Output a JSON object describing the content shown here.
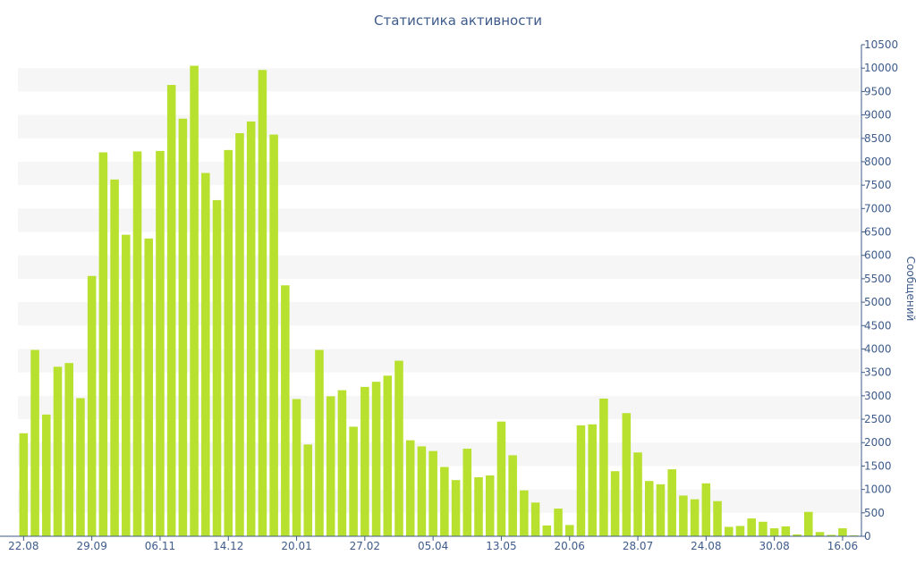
{
  "chart_data": {
    "type": "bar",
    "title": "Статистика активности",
    "xlabel": "",
    "ylabel": "Сообщений",
    "ylim": [
      0,
      10500
    ],
    "y_ticks": [
      0,
      500,
      1000,
      1500,
      2000,
      2500,
      3000,
      3500,
      4000,
      4500,
      5000,
      5500,
      6000,
      6500,
      7000,
      7500,
      8000,
      8500,
      9000,
      9500,
      10000,
      10500
    ],
    "y_axis_position": "right",
    "x_tick_labels": [
      "22.08",
      "29.09",
      "06.11",
      "14.12",
      "20.01",
      "27.02",
      "05.04",
      "13.05",
      "20.06",
      "28.07",
      "24.08",
      "30.08",
      "16.06"
    ],
    "x_tick_every": 6,
    "grid": "alternating horizontal bands",
    "colors": {
      "bar": "#b8e02e",
      "band": "#f6f6f6",
      "text": "#3e5b8a",
      "axis": "#3e5b8a"
    },
    "values": [
      2200,
      3980,
      2600,
      3620,
      3700,
      2950,
      5560,
      8200,
      7620,
      6440,
      8220,
      6360,
      8230,
      9640,
      8920,
      10050,
      7760,
      7180,
      8250,
      8610,
      8860,
      9960,
      8580,
      5360,
      2930,
      1960,
      3980,
      2990,
      3120,
      2340,
      3190,
      3300,
      3430,
      3750,
      2050,
      1920,
      1820,
      1480,
      1200,
      1870,
      1260,
      1300,
      2450,
      1730,
      980,
      720,
      230,
      590,
      240,
      2370,
      2390,
      2940,
      1390,
      2630,
      1790,
      1180,
      1110,
      1430,
      870,
      790,
      1130,
      750,
      200,
      220,
      380,
      310,
      170,
      210,
      40,
      520,
      90,
      30,
      170,
      20
    ]
  }
}
